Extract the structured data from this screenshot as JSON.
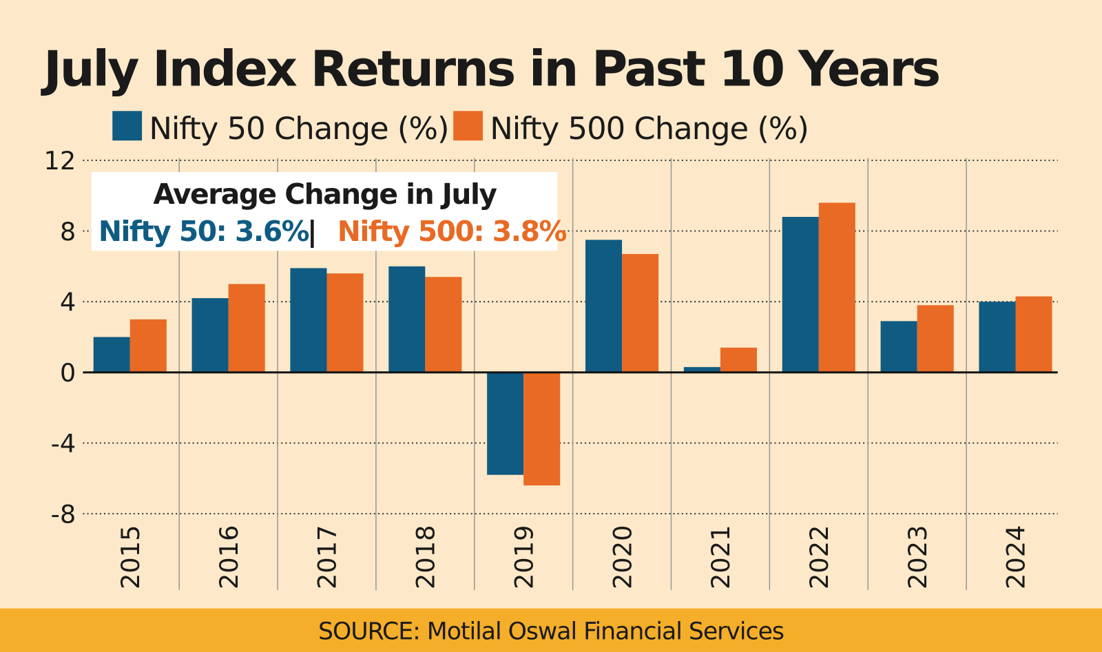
{
  "chart_data": {
    "type": "bar",
    "title": "July Index Returns in Past 10 Years",
    "categories": [
      "2015",
      "2016",
      "2017",
      "2018",
      "2019",
      "2020",
      "2021",
      "2022",
      "2023",
      "2024"
    ],
    "series": [
      {
        "name": "Nifty 50 Change (%)",
        "color": "#0f5b82",
        "values": [
          2.0,
          4.2,
          5.9,
          6.0,
          -5.8,
          7.5,
          0.3,
          8.8,
          2.9,
          4.0
        ]
      },
      {
        "name": "Nifty 500 Change (%)",
        "color": "#e86a24",
        "values": [
          3.0,
          5.0,
          5.6,
          5.4,
          -6.4,
          6.7,
          1.4,
          9.6,
          3.8,
          4.3
        ]
      }
    ],
    "ylim": [
      -8,
      12
    ],
    "yticks": [
      "12",
      "8",
      "4",
      "0",
      "-4",
      "-8"
    ],
    "ytick_values": [
      12,
      8,
      4,
      0,
      -4,
      -8
    ],
    "grid": true,
    "legend": "top",
    "xlabel": "",
    "ylabel": "",
    "annotation": {
      "title": "Average Change in July",
      "nifty50": "Nifty 50: 3.6%",
      "separator": "|",
      "nifty500": "Nifty 500: 3.8%"
    },
    "source": "SOURCE: Motilal Oswal Financial Services"
  },
  "colors": {
    "background": "#fde9c9",
    "source_bar": "#f5ae2a"
  }
}
